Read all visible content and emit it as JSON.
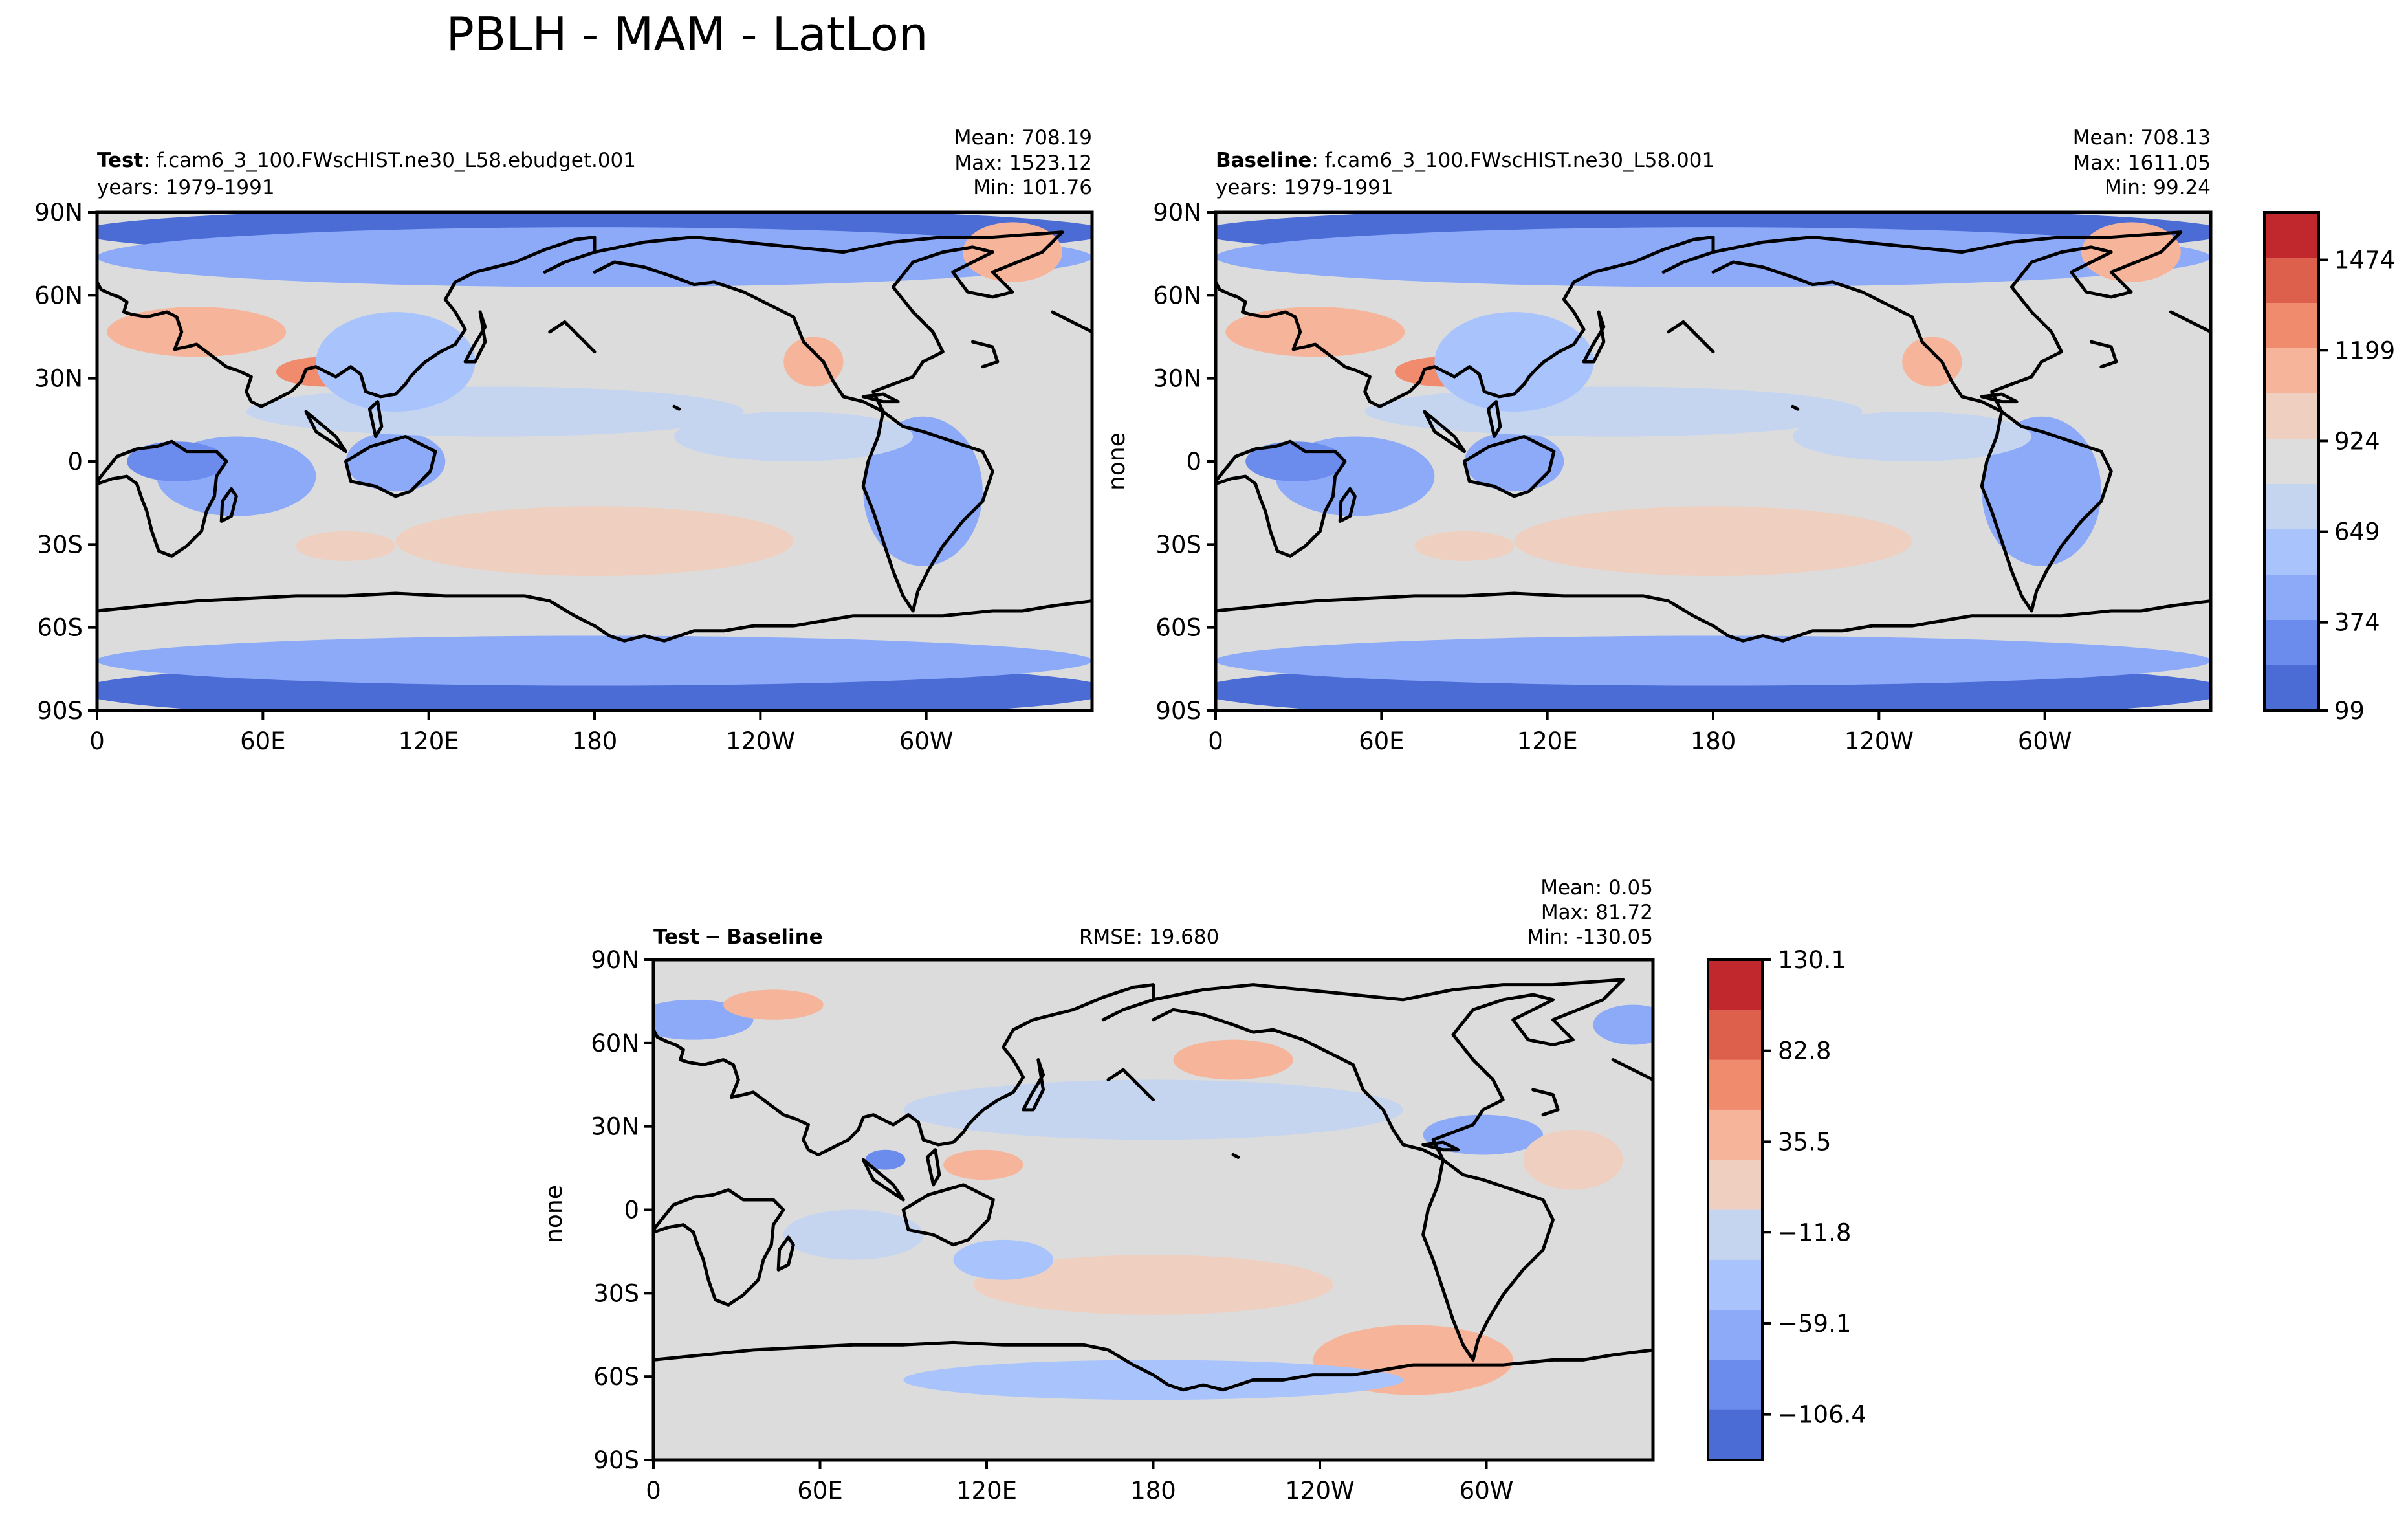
{
  "figure": {
    "title": "PBLH - MAM - LatLon"
  },
  "chart_data": [
    {
      "type": "heatmap",
      "panel": "test",
      "label_bold": "Test",
      "label_rest": ": f.cam6_3_100.FWscHIST.ne30_L58.ebudget.001",
      "years": "years: 1979-1991",
      "stats": [
        "Mean: 708.19",
        "Max: 1523.12",
        "Min: 101.76"
      ],
      "ylabel": "",
      "xticks": [
        "0",
        "60E",
        "120E",
        "180",
        "120W",
        "60W"
      ],
      "yticks": [
        "90N",
        "60N",
        "30N",
        "0",
        "30S",
        "60S",
        "90S"
      ],
      "xlim": [
        0,
        360
      ],
      "ylim": [
        -90,
        90
      ],
      "colormap": "coolwarm",
      "levels": [
        99,
        1611
      ]
    },
    {
      "type": "heatmap",
      "panel": "baseline",
      "label_bold": "Baseline",
      "label_rest": ": f.cam6_3_100.FWscHIST.ne30_L58.001",
      "years": "years: 1979-1991",
      "stats": [
        "Mean: 708.13",
        "Max: 1611.05",
        "Min: 99.24"
      ],
      "ylabel": "none",
      "xticks": [
        "0",
        "60E",
        "120E",
        "180",
        "120W",
        "60W"
      ],
      "yticks": [
        "90N",
        "60N",
        "30N",
        "0",
        "30S",
        "60S",
        "90S"
      ],
      "xlim": [
        0,
        360
      ],
      "ylim": [
        -90,
        90
      ],
      "colormap": "coolwarm",
      "levels": [
        99,
        1611
      ]
    },
    {
      "type": "heatmap",
      "panel": "difference",
      "label_bold_a": "Test",
      "label_minus": "−",
      "label_bold_b": "Baseline",
      "rmse": "RMSE: 19.680",
      "stats": [
        "Mean:  0.05",
        "Max: 81.72",
        "Min: -130.05"
      ],
      "ylabel": "none",
      "xticks": [
        "0",
        "60E",
        "120E",
        "180",
        "120W",
        "60W"
      ],
      "yticks": [
        "90N",
        "60N",
        "30N",
        "0",
        "30S",
        "60S",
        "90S"
      ],
      "xlim": [
        0,
        360
      ],
      "ylim": [
        -90,
        90
      ],
      "colormap": "coolwarm",
      "levels": [
        -130.1,
        130.1
      ]
    }
  ],
  "colorbars": [
    {
      "ticks": [
        "1474",
        "1199",
        "924",
        "649",
        "374",
        "99"
      ]
    },
    {
      "ticks": [
        "130.1",
        "82.8",
        "35.5",
        "−11.8",
        "−59.1",
        "−106.4"
      ]
    }
  ],
  "colors": {
    "bar_top": [
      "#c0282d",
      "#dd604c",
      "#f08b6e",
      "#f6b59a",
      "#efd0c0",
      "#dddddd",
      "#c5d5f0",
      "#a9c4fd",
      "#8caaf8",
      "#6b8ced",
      "#4b6bd5"
    ],
    "diff": [
      "#c0282d",
      "#dd604c",
      "#f08b6e",
      "#f6b59a",
      "#efd0c0",
      "#c5d5f0",
      "#a9c4fd",
      "#8caaf8",
      "#6b8ced",
      "#4b6bd5"
    ]
  }
}
